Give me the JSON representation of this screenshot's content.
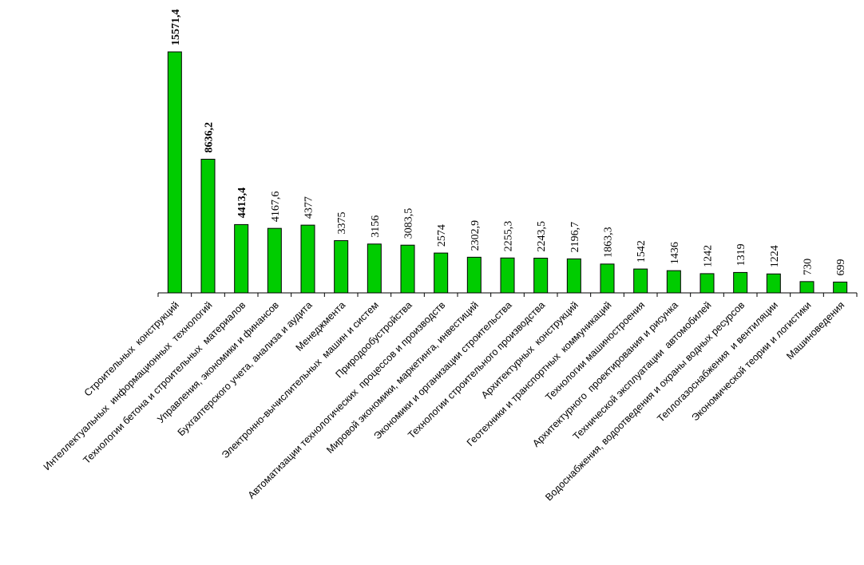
{
  "chart_data": {
    "type": "bar",
    "categories": [
      "Строительных  конструкций",
      "Интеллектуальных  информационных  технологий",
      "Технологии бетона и строительных  материалов",
      "Управления, экономики и финансов",
      "Бухгалтерского учета, анализа и аудита",
      "Менеджмента",
      "Электронно-вычислительных  машин и систем",
      "Природообустройства",
      "Автоматизации технологических  процессов и производств",
      "Мировой экономики, маркетинга, инвестиций",
      "Экономики и организации строительства",
      "Технологии строительного производства",
      "Архитектурных  конструкций",
      "Геотехники и транспортных  коммуникаций",
      "Технологии машиностроения",
      "Архитектурного  проектирования и рисунка",
      "Технической эксплуатации  автомобилей",
      "Водоснабжения, водоотведения и охраны водных ресурсов",
      "Теплогазоснабжения  и вентиляции",
      "Экономической теории и логистики",
      "Машиноведения"
    ],
    "values": [
      15571.4,
      8636.2,
      4413.4,
      4167.6,
      4377,
      3375,
      3156,
      3083.5,
      2574,
      2302.9,
      2255.3,
      2243.5,
      2196.7,
      1863.3,
      1542,
      1436,
      1242,
      1319,
      1224,
      730,
      699
    ],
    "value_labels": [
      "15571,4",
      "8636,2",
      "4413,4",
      "4167,6",
      "4377",
      "3375",
      "3156",
      "3083,5",
      "2574",
      "2302,9",
      "2255,3",
      "2243,5",
      "2196,7",
      "1863,3",
      "1542",
      "1436",
      "1242",
      "1319",
      "1224",
      "730",
      "699"
    ],
    "bold_labels": [
      0,
      1,
      2
    ],
    "bar_color": "#00cc00",
    "bar_stroke": "#000000",
    "ylim": [
      0,
      16000
    ],
    "grid": false,
    "legend": "none"
  }
}
